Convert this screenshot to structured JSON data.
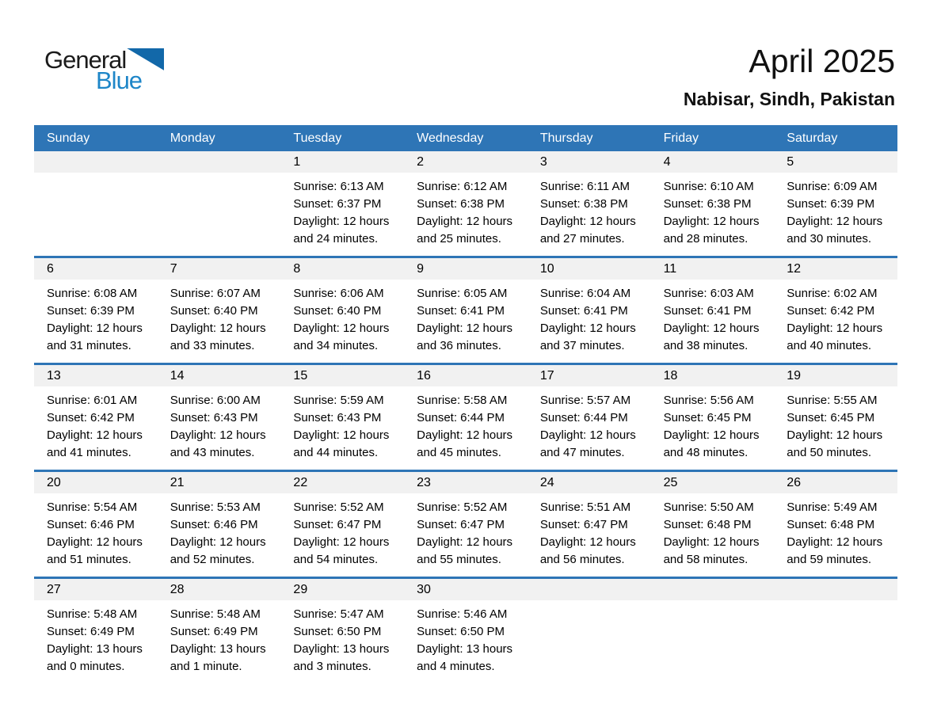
{
  "logo": {
    "word1": "General",
    "word2": "Blue"
  },
  "header": {
    "title": "April 2025",
    "location": "Nabisar, Sindh, Pakistan"
  },
  "colors": {
    "accent_blue": "#2E75B6",
    "number_band_gray": "#F1F1F1",
    "logo_triangle_blue": "#1268A9",
    "logo_text_blue": "#1E86C8",
    "header_text": "#FFFFFF",
    "body_text": "#000000"
  },
  "calendar": {
    "day_names": [
      "Sunday",
      "Monday",
      "Tuesday",
      "Wednesday",
      "Thursday",
      "Friday",
      "Saturday"
    ],
    "weeks": [
      [
        null,
        null,
        {
          "num": "1",
          "sunrise": "Sunrise: 6:13 AM",
          "sunset": "Sunset: 6:37 PM",
          "daylight": "Daylight: 12 hours and 24 minutes."
        },
        {
          "num": "2",
          "sunrise": "Sunrise: 6:12 AM",
          "sunset": "Sunset: 6:38 PM",
          "daylight": "Daylight: 12 hours and 25 minutes."
        },
        {
          "num": "3",
          "sunrise": "Sunrise: 6:11 AM",
          "sunset": "Sunset: 6:38 PM",
          "daylight": "Daylight: 12 hours and 27 minutes."
        },
        {
          "num": "4",
          "sunrise": "Sunrise: 6:10 AM",
          "sunset": "Sunset: 6:38 PM",
          "daylight": "Daylight: 12 hours and 28 minutes."
        },
        {
          "num": "5",
          "sunrise": "Sunrise: 6:09 AM",
          "sunset": "Sunset: 6:39 PM",
          "daylight": "Daylight: 12 hours and 30 minutes."
        }
      ],
      [
        {
          "num": "6",
          "sunrise": "Sunrise: 6:08 AM",
          "sunset": "Sunset: 6:39 PM",
          "daylight": "Daylight: 12 hours and 31 minutes."
        },
        {
          "num": "7",
          "sunrise": "Sunrise: 6:07 AM",
          "sunset": "Sunset: 6:40 PM",
          "daylight": "Daylight: 12 hours and 33 minutes."
        },
        {
          "num": "8",
          "sunrise": "Sunrise: 6:06 AM",
          "sunset": "Sunset: 6:40 PM",
          "daylight": "Daylight: 12 hours and 34 minutes."
        },
        {
          "num": "9",
          "sunrise": "Sunrise: 6:05 AM",
          "sunset": "Sunset: 6:41 PM",
          "daylight": "Daylight: 12 hours and 36 minutes."
        },
        {
          "num": "10",
          "sunrise": "Sunrise: 6:04 AM",
          "sunset": "Sunset: 6:41 PM",
          "daylight": "Daylight: 12 hours and 37 minutes."
        },
        {
          "num": "11",
          "sunrise": "Sunrise: 6:03 AM",
          "sunset": "Sunset: 6:41 PM",
          "daylight": "Daylight: 12 hours and 38 minutes."
        },
        {
          "num": "12",
          "sunrise": "Sunrise: 6:02 AM",
          "sunset": "Sunset: 6:42 PM",
          "daylight": "Daylight: 12 hours and 40 minutes."
        }
      ],
      [
        {
          "num": "13",
          "sunrise": "Sunrise: 6:01 AM",
          "sunset": "Sunset: 6:42 PM",
          "daylight": "Daylight: 12 hours and 41 minutes."
        },
        {
          "num": "14",
          "sunrise": "Sunrise: 6:00 AM",
          "sunset": "Sunset: 6:43 PM",
          "daylight": "Daylight: 12 hours and 43 minutes."
        },
        {
          "num": "15",
          "sunrise": "Sunrise: 5:59 AM",
          "sunset": "Sunset: 6:43 PM",
          "daylight": "Daylight: 12 hours and 44 minutes."
        },
        {
          "num": "16",
          "sunrise": "Sunrise: 5:58 AM",
          "sunset": "Sunset: 6:44 PM",
          "daylight": "Daylight: 12 hours and 45 minutes."
        },
        {
          "num": "17",
          "sunrise": "Sunrise: 5:57 AM",
          "sunset": "Sunset: 6:44 PM",
          "daylight": "Daylight: 12 hours and 47 minutes."
        },
        {
          "num": "18",
          "sunrise": "Sunrise: 5:56 AM",
          "sunset": "Sunset: 6:45 PM",
          "daylight": "Daylight: 12 hours and 48 minutes."
        },
        {
          "num": "19",
          "sunrise": "Sunrise: 5:55 AM",
          "sunset": "Sunset: 6:45 PM",
          "daylight": "Daylight: 12 hours and 50 minutes."
        }
      ],
      [
        {
          "num": "20",
          "sunrise": "Sunrise: 5:54 AM",
          "sunset": "Sunset: 6:46 PM",
          "daylight": "Daylight: 12 hours and 51 minutes."
        },
        {
          "num": "21",
          "sunrise": "Sunrise: 5:53 AM",
          "sunset": "Sunset: 6:46 PM",
          "daylight": "Daylight: 12 hours and 52 minutes."
        },
        {
          "num": "22",
          "sunrise": "Sunrise: 5:52 AM",
          "sunset": "Sunset: 6:47 PM",
          "daylight": "Daylight: 12 hours and 54 minutes."
        },
        {
          "num": "23",
          "sunrise": "Sunrise: 5:52 AM",
          "sunset": "Sunset: 6:47 PM",
          "daylight": "Daylight: 12 hours and 55 minutes."
        },
        {
          "num": "24",
          "sunrise": "Sunrise: 5:51 AM",
          "sunset": "Sunset: 6:47 PM",
          "daylight": "Daylight: 12 hours and 56 minutes."
        },
        {
          "num": "25",
          "sunrise": "Sunrise: 5:50 AM",
          "sunset": "Sunset: 6:48 PM",
          "daylight": "Daylight: 12 hours and 58 minutes."
        },
        {
          "num": "26",
          "sunrise": "Sunrise: 5:49 AM",
          "sunset": "Sunset: 6:48 PM",
          "daylight": "Daylight: 12 hours and 59 minutes."
        }
      ],
      [
        {
          "num": "27",
          "sunrise": "Sunrise: 5:48 AM",
          "sunset": "Sunset: 6:49 PM",
          "daylight": "Daylight: 13 hours and 0 minutes."
        },
        {
          "num": "28",
          "sunrise": "Sunrise: 5:48 AM",
          "sunset": "Sunset: 6:49 PM",
          "daylight": "Daylight: 13 hours and 1 minute."
        },
        {
          "num": "29",
          "sunrise": "Sunrise: 5:47 AM",
          "sunset": "Sunset: 6:50 PM",
          "daylight": "Daylight: 13 hours and 3 minutes."
        },
        {
          "num": "30",
          "sunrise": "Sunrise: 5:46 AM",
          "sunset": "Sunset: 6:50 PM",
          "daylight": "Daylight: 13 hours and 4 minutes."
        },
        null,
        null,
        null
      ]
    ]
  }
}
